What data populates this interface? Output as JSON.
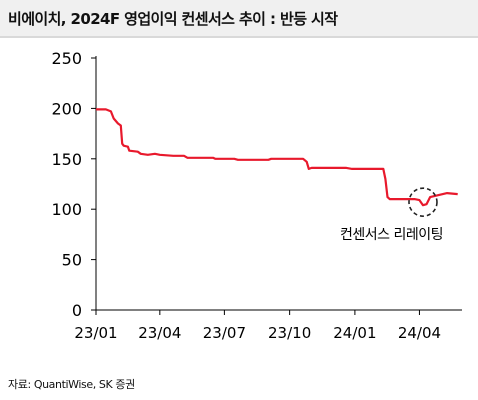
{
  "header": {
    "title": "비에이치, 2024F 영업이익 컨센서스 추이 : 반등 시작"
  },
  "footer": {
    "source": "자료: QuantiWise, SK 증권"
  },
  "colors": {
    "line": "#e8192c",
    "axis": "#000000",
    "header_bg": "#f0f0f0",
    "annotation_circle": "#222222"
  },
  "chart_data": {
    "type": "line",
    "title": "",
    "xlabel": "",
    "ylabel": "",
    "ylim": [
      0,
      250
    ],
    "yticks": [
      0,
      50,
      100,
      150,
      200,
      250
    ],
    "xlim": [
      "2023-01-01",
      "2024-05-31"
    ],
    "xticks": [
      {
        "label": "23/01",
        "date": "2023-01-01"
      },
      {
        "label": "23/04",
        "date": "2023-04-01"
      },
      {
        "label": "23/07",
        "date": "2023-07-01"
      },
      {
        "label": "23/10",
        "date": "2023-10-01"
      },
      {
        "label": "24/01",
        "date": "2024-01-01"
      },
      {
        "label": "24/04",
        "date": "2024-04-01"
      }
    ],
    "grid": false,
    "legend": "none",
    "series": [
      {
        "points": [
          [
            "2023-01-01",
            199
          ],
          [
            "2023-01-15",
            199
          ],
          [
            "2023-01-22",
            197
          ],
          [
            "2023-01-26",
            190
          ],
          [
            "2023-02-01",
            185
          ],
          [
            "2023-02-05",
            183
          ],
          [
            "2023-02-07",
            165
          ],
          [
            "2023-02-09",
            163
          ],
          [
            "2023-02-15",
            162
          ],
          [
            "2023-02-17",
            158
          ],
          [
            "2023-03-01",
            157
          ],
          [
            "2023-03-05",
            155
          ],
          [
            "2023-03-15",
            154
          ],
          [
            "2023-03-25",
            155
          ],
          [
            "2023-04-01",
            154
          ],
          [
            "2023-04-20",
            153
          ],
          [
            "2023-05-05",
            153
          ],
          [
            "2023-05-10",
            151
          ],
          [
            "2023-06-15",
            151
          ],
          [
            "2023-06-18",
            150
          ],
          [
            "2023-07-15",
            150
          ],
          [
            "2023-07-20",
            149
          ],
          [
            "2023-09-01",
            149
          ],
          [
            "2023-09-05",
            150
          ],
          [
            "2023-10-20",
            150
          ],
          [
            "2023-10-25",
            147
          ],
          [
            "2023-10-28",
            140
          ],
          [
            "2023-11-01",
            141
          ],
          [
            "2023-12-20",
            141
          ],
          [
            "2023-12-28",
            140
          ],
          [
            "2024-02-10",
            140
          ],
          [
            "2024-02-13",
            130
          ],
          [
            "2024-02-16",
            112
          ],
          [
            "2024-02-19",
            110
          ],
          [
            "2024-03-20",
            110
          ],
          [
            "2024-03-25",
            110
          ],
          [
            "2024-04-01",
            109
          ],
          [
            "2024-04-06",
            104
          ],
          [
            "2024-04-11",
            105
          ],
          [
            "2024-04-16",
            112
          ],
          [
            "2024-04-28",
            114
          ],
          [
            "2024-05-10",
            116
          ],
          [
            "2024-05-25",
            115
          ]
        ]
      }
    ],
    "annotations": [
      {
        "text": "컨센서스 리레이팅",
        "target": [
          "2024-04-06",
          104
        ]
      }
    ]
  }
}
